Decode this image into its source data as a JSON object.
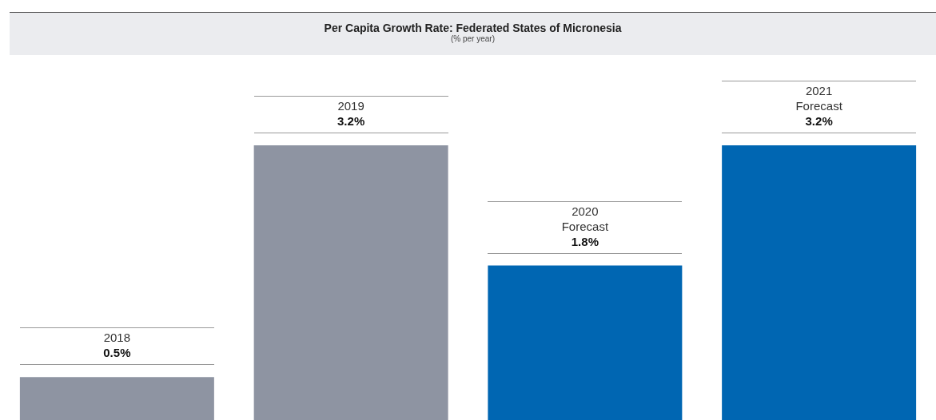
{
  "chart_data": {
    "type": "bar",
    "title": "Per Capita Growth Rate: Federated States of Micronesia",
    "subtitle": "(% per year)",
    "categories": [
      "2018",
      "2019",
      "2020 Forecast",
      "2021 Forecast"
    ],
    "values": [
      0.5,
      3.2,
      1.8,
      3.2
    ],
    "colors": [
      "#8e94a2",
      "#8e94a2",
      "#0066b2",
      "#0066b2"
    ],
    "value_labels": [
      "0.5%",
      "3.2%",
      "1.8%",
      "3.2%"
    ],
    "legend": false,
    "tick_labels": false
  }
}
